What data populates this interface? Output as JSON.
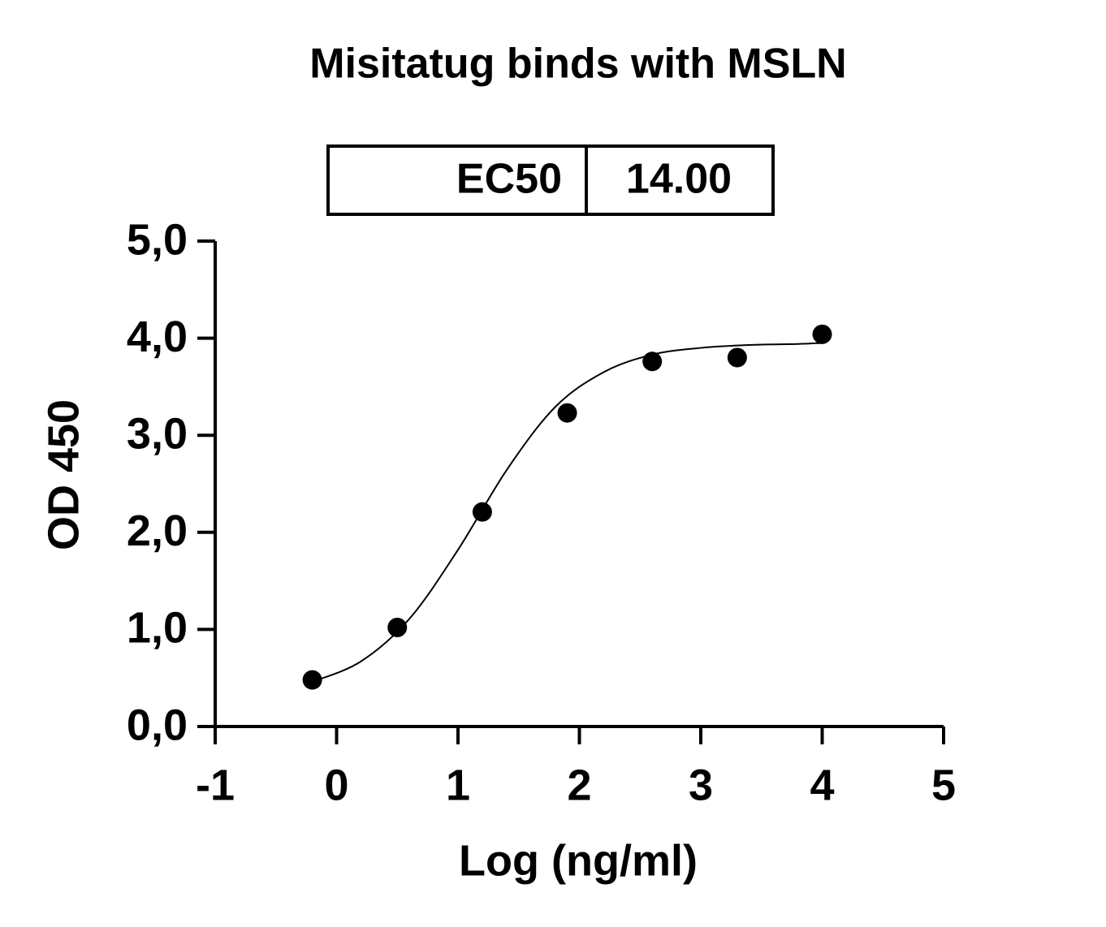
{
  "chart_data": {
    "type": "scatter",
    "title": "Misitatug binds with MSLN",
    "x_label": "Log (ng/ml)",
    "y_label": "OD 450",
    "annotation": {
      "label": "EC50",
      "value": "14.00"
    },
    "color": "#000000",
    "x": [
      -0.2,
      0.5,
      1.2,
      1.9,
      2.6,
      3.3,
      4.0
    ],
    "values": [
      0.48,
      1.02,
      2.21,
      3.23,
      3.76,
      3.8,
      4.04
    ],
    "fit": {
      "x": [
        -0.2,
        0.2,
        0.6,
        1.0,
        1.4,
        1.8,
        2.2,
        2.6,
        3.0,
        3.4,
        3.8,
        4.0
      ],
      "values": [
        0.46,
        0.67,
        1.11,
        1.82,
        2.64,
        3.29,
        3.65,
        3.83,
        3.9,
        3.93,
        3.94,
        3.95
      ]
    },
    "xlim": [
      -1,
      5
    ],
    "xticks": [
      -1,
      0,
      1,
      2,
      3,
      4,
      5
    ],
    "ylim": [
      0,
      5
    ],
    "yticks": [
      {
        "value": 0,
        "label": "0,0"
      },
      {
        "value": 1,
        "label": "1,0"
      },
      {
        "value": 2,
        "label": "2,0"
      },
      {
        "value": 3,
        "label": "3,0"
      },
      {
        "value": 4,
        "label": "4,0"
      },
      {
        "value": 5,
        "label": "5,0"
      }
    ],
    "grid": false
  }
}
